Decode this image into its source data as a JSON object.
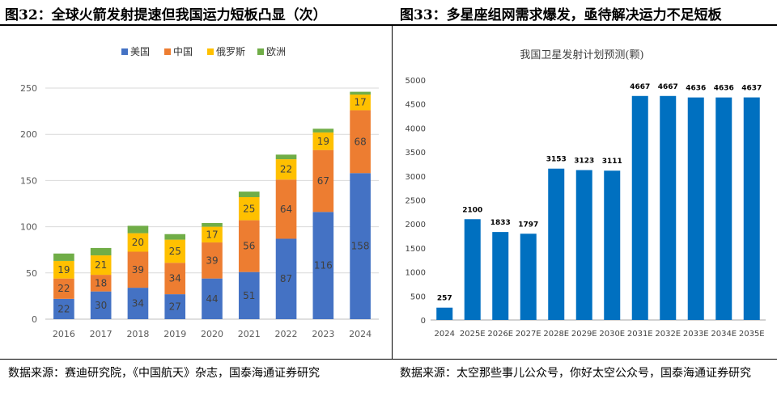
{
  "left_panel": {
    "title": "图32：全球火箭发射提速但我国运力短板凸显（次）",
    "source": "数据来源：赛迪研究院，《中国航天》杂志，国泰海通证券研究"
  },
  "right_panel": {
    "title": "图33：多星座组网需求爆发，亟待解决运力不足短板",
    "source": "数据来源：太空那些事儿公众号，你好太空公众号，国泰海通证券研究"
  },
  "chart_data": [
    {
      "type": "bar",
      "stacked": true,
      "title": "",
      "legend_position": "top",
      "categories": [
        "2016",
        "2017",
        "2018",
        "2019",
        "2020",
        "2021",
        "2022",
        "2023",
        "2024"
      ],
      "ylim": [
        0,
        250
      ],
      "yticks": [
        0,
        50,
        100,
        150,
        200,
        250
      ],
      "series": [
        {
          "name": "美国",
          "color": "#4472C4",
          "values": [
            22,
            30,
            34,
            27,
            44,
            51,
            87,
            116,
            158
          ]
        },
        {
          "name": "中国",
          "color": "#ED7D31",
          "values": [
            22,
            18,
            39,
            34,
            39,
            56,
            64,
            67,
            68
          ]
        },
        {
          "name": "俄罗斯",
          "color": "#FFC000",
          "values": [
            19,
            21,
            20,
            25,
            17,
            25,
            22,
            19,
            17
          ]
        },
        {
          "name": "欧洲",
          "color": "#70AD47",
          "values": [
            8,
            8,
            8,
            6,
            4,
            6,
            5,
            4,
            3
          ]
        }
      ]
    },
    {
      "type": "bar",
      "title": "我国卫星发射计划预测(颗)",
      "categories": [
        "2024",
        "2025E",
        "2026E",
        "2027E",
        "2028E",
        "2029E",
        "2030E",
        "2031E",
        "2032E",
        "2033E",
        "2034E",
        "2035E"
      ],
      "values": [
        257,
        2100,
        1833,
        1797,
        3153,
        3123,
        3111,
        4667,
        4667,
        4636,
        4636,
        4637
      ],
      "color": "#0070C0",
      "ylim": [
        0,
        5000
      ],
      "yticks": [
        0,
        500,
        1000,
        1500,
        2000,
        2500,
        3000,
        3500,
        4000,
        4500,
        5000
      ]
    }
  ]
}
